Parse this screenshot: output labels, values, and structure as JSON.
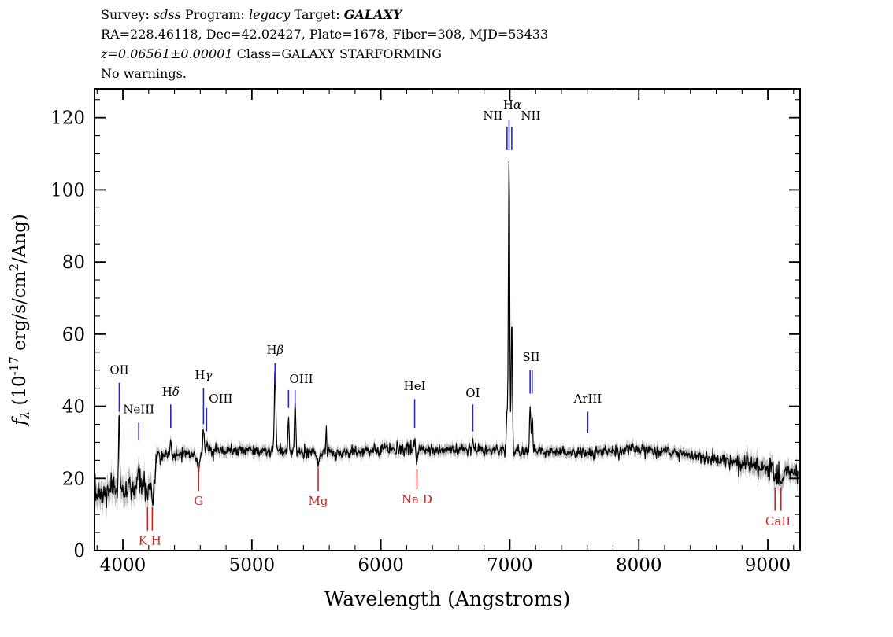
{
  "header": {
    "lines": [
      {
        "name": "survey-line",
        "segments": [
          {
            "t": "Survey: "
          },
          {
            "t": "sdss",
            "i": true
          },
          {
            "t": " Program: "
          },
          {
            "t": "legacy",
            "i": true
          },
          {
            "t": " Target: "
          },
          {
            "t": "GALAXY",
            "i": true,
            "b": true
          }
        ]
      },
      {
        "name": "coords-line",
        "segments": [
          {
            "t": "RA=228.46118, Dec=42.02427, Plate=1678, Fiber=308, MJD=53433"
          }
        ]
      },
      {
        "name": "redshift-line",
        "segments": [
          {
            "t": "z=0.06561±0.00001",
            "i": true
          },
          {
            "t": " Class=GALAXY STARFORMING"
          }
        ]
      },
      {
        "name": "warnings-line",
        "segments": [
          {
            "t": "No warnings."
          }
        ]
      }
    ]
  },
  "chart_data": {
    "type": "line",
    "title": "",
    "xlabel": "Wavelength (Angstroms)",
    "ylabel": "f_lambda (10^-17 erg/s/cm^2/Ang)",
    "ylabel_parts": [
      {
        "t": "f",
        "i": true
      },
      {
        "t": "λ",
        "i": true,
        "pos": "sub"
      },
      {
        "t": " (10"
      },
      {
        "t": "-17",
        "pos": "sup"
      },
      {
        "t": " erg/s/cm"
      },
      {
        "t": "2",
        "pos": "sup"
      },
      {
        "t": "/Ang)"
      }
    ],
    "xlim": [
      3780,
      9250
    ],
    "ylim": [
      0,
      128
    ],
    "xticks": [
      4000,
      5000,
      6000,
      7000,
      8000,
      9000
    ],
    "xminor_step": 200,
    "yticks": [
      0,
      20,
      40,
      60,
      80,
      100,
      120
    ],
    "yminor_step": 5,
    "grid": false,
    "continuum_points": [
      [
        3782,
        15.5
      ],
      [
        3900,
        16.2
      ],
      [
        3995,
        16.8
      ],
      [
        4100,
        17.5
      ],
      [
        4235,
        19.5
      ],
      [
        4268,
        26.5
      ],
      [
        4420,
        26.5
      ],
      [
        4700,
        27.2
      ],
      [
        5000,
        28
      ],
      [
        5320,
        27.5
      ],
      [
        5620,
        27
      ],
      [
        6000,
        28
      ],
      [
        6400,
        28.2
      ],
      [
        6800,
        27.6
      ],
      [
        7050,
        28
      ],
      [
        7320,
        27.4
      ],
      [
        7620,
        27
      ],
      [
        8000,
        28
      ],
      [
        8320,
        26.8
      ],
      [
        8620,
        25.2
      ],
      [
        8920,
        23.8
      ],
      [
        9120,
        22
      ],
      [
        9240,
        21.5
      ]
    ],
    "emission_lines": [
      {
        "label": "OII",
        "waves": [
          3972
        ],
        "amps": [
          20
        ],
        "width": 5,
        "tick": [
          38.5,
          46.5
        ],
        "label_flux": 49,
        "dx": 0
      },
      {
        "label": "NeIII",
        "waves": [
          4123
        ],
        "amps": [
          5.5
        ],
        "width": 5,
        "tick": [
          30.5,
          35.5
        ],
        "label_flux": 38,
        "dx": 0
      },
      {
        "label": "Hδ",
        "waves": [
          4371
        ],
        "amps": [
          5
        ],
        "width": 5,
        "tick": [
          34,
          40.5
        ],
        "label_flux": 43,
        "dx": 0
      },
      {
        "label": "Hγ",
        "waves": [
          4625
        ],
        "amps": [
          7
        ],
        "width": 5,
        "tick": [
          35,
          45
        ],
        "label_flux": 47.5,
        "dx": 0
      },
      {
        "label": "OIII",
        "waves": [
          4649
        ],
        "amps": [
          3
        ],
        "width": 5,
        "tick": [
          33,
          39.5
        ],
        "label_flux": 41,
        "dx": 18
      },
      {
        "label": "Hβ",
        "waves": [
          5180
        ],
        "amps": [
          23
        ],
        "width": 5.5,
        "tick": [
          46,
          52
        ],
        "label_flux": 54.5,
        "dx": 0
      },
      {
        "label": "OIII",
        "waves": [
          5284,
          5335
        ],
        "amps": [
          8,
          13
        ],
        "width": 5,
        "tick": [
          39.5,
          44.5
        ],
        "label_flux": 46.5,
        "dx": 12
      },
      {
        "label": "HeI",
        "waves": [
          6262
        ],
        "amps": [
          4
        ],
        "width": 5,
        "tick": [
          34,
          42
        ],
        "label_flux": 44.5,
        "dx": 0
      },
      {
        "label": "OI",
        "waves": [
          6713
        ],
        "amps": [
          3.5
        ],
        "width": 5,
        "tick": [
          33,
          40.5
        ],
        "label_flux": 42.5,
        "dx": 0
      },
      {
        "label": "NII",
        "waves": [
          6978
        ],
        "amps": [
          10
        ],
        "width": 4.5,
        "tick": [
          111,
          117.5
        ],
        "label_flux": 119.5,
        "dx": -18
      },
      {
        "label": "Hα",
        "waves": [
          6994
        ],
        "amps": [
          82
        ],
        "width": 5,
        "tick": [
          111,
          119.5
        ],
        "label_flux": 122.5,
        "dx": 4
      },
      {
        "label": "NII",
        "waves": [
          7015
        ],
        "amps": [
          38
        ],
        "width": 4.5,
        "tick": [
          111,
          117.5
        ],
        "label_flux": 119.5,
        "dx": 24
      },
      {
        "label": "SII",
        "waves": [
          7157,
          7173
        ],
        "amps": [
          12,
          10
        ],
        "width": 4.5,
        "tick": [
          43.5,
          50
        ],
        "label_flux": 52.5,
        "dx": 0
      },
      {
        "label": "ArIII",
        "waves": [
          7604
        ],
        "amps": [
          1.5
        ],
        "width": 4.5,
        "tick": [
          32.5,
          38.5
        ],
        "label_flux": 41,
        "dx": 0
      }
    ],
    "absorption_lines": [
      {
        "label": "K H",
        "waves": [
          4191,
          4228
        ],
        "amps": [
          -4.5,
          -4.5
        ],
        "width": 7,
        "tick": [
          5.5,
          12
        ],
        "label_flux": 1.6,
        "dx": 0
      },
      {
        "label": "G",
        "waves": [
          4587
        ],
        "amps": [
          -3.5
        ],
        "width": 9,
        "tick": [
          16.5,
          24
        ],
        "label_flux": 12.6,
        "dx": 0
      },
      {
        "label": "Mg",
        "waves": [
          5514
        ],
        "amps": [
          -3
        ],
        "width": 11,
        "tick": [
          16.5,
          23
        ],
        "label_flux": 12.6,
        "dx": 0
      },
      {
        "label": "Na D",
        "waves": [
          6280
        ],
        "amps": [
          -4.5
        ],
        "width": 7,
        "tick": [
          17,
          22.5
        ],
        "label_flux": 13.1,
        "dx": 0
      },
      {
        "label": "CaII",
        "waves": [
          9056,
          9102
        ],
        "amps": [
          -4,
          -4.5
        ],
        "width": 7,
        "tick": [
          11,
          17.5
        ],
        "label_flux": 7,
        "dx": 0
      }
    ],
    "sky_residuals": [
      {
        "waves": [
          5577
        ],
        "amps": [
          7
        ],
        "width": 3
      }
    ],
    "noise": {
      "seed": 7,
      "sigma_blue": 2.1,
      "sigma_mid": 0.85,
      "sigma_red": 1.5,
      "blue_until": 4262,
      "red_from": 8750
    },
    "error_band": {
      "blue": 3.0,
      "mid": 1.35,
      "red": 2.3
    },
    "colors": {
      "spectrum": "#000000",
      "error_band": "#b9b9b9",
      "emission_tick": "#2626cc",
      "absorption_tick": "#cc2222",
      "emission_label": "#000000",
      "absorption_label": "#cc2222",
      "axis": "#000000"
    }
  }
}
